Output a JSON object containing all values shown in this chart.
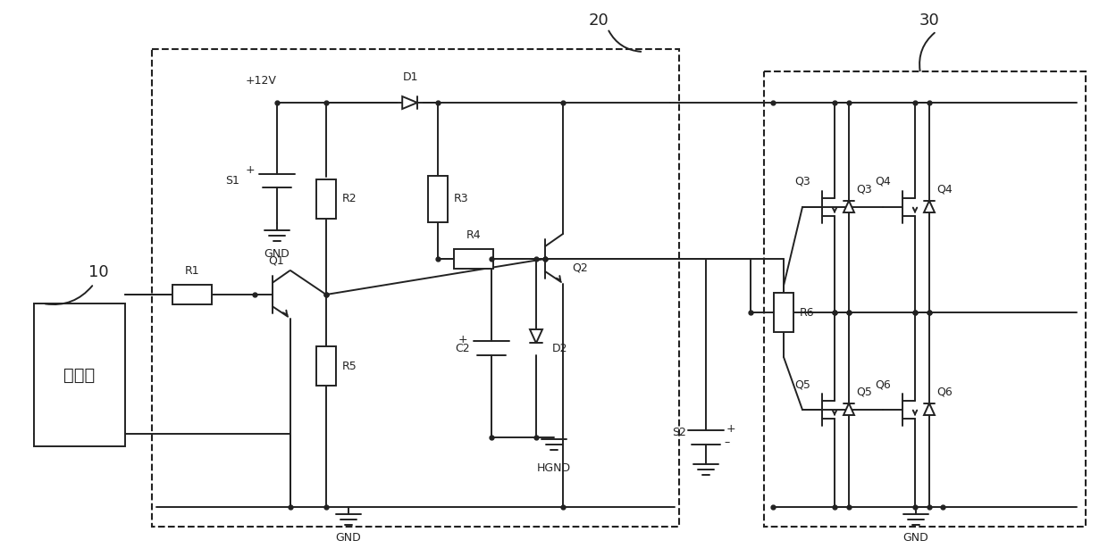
{
  "bg_color": "#ffffff",
  "line_color": "#222222",
  "lw": 1.4,
  "dot_r": 3.5,
  "signal_source_label": "信号源",
  "label_10": "10",
  "label_20": "20",
  "label_30": "30",
  "V12": "+12V",
  "GND": "GND",
  "HGND": "HGND",
  "components": [
    "R1",
    "R2",
    "R3",
    "R4",
    "R5",
    "R6",
    "D1",
    "D2",
    "C2",
    "Q1",
    "Q2",
    "Q3",
    "Q4",
    "Q5",
    "Q6",
    "S1",
    "S2"
  ]
}
